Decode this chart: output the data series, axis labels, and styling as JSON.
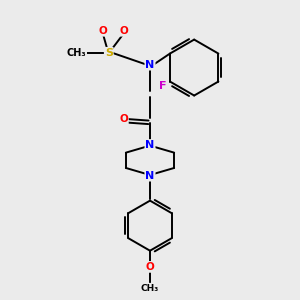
{
  "background_color": "#ebebeb",
  "bond_color": "#000000",
  "atom_colors": {
    "N": "#0000ff",
    "O": "#ff0000",
    "S": "#ccaa00",
    "F": "#cc00cc",
    "C": "#000000"
  },
  "figsize": [
    3.0,
    3.0
  ],
  "dpi": 100
}
